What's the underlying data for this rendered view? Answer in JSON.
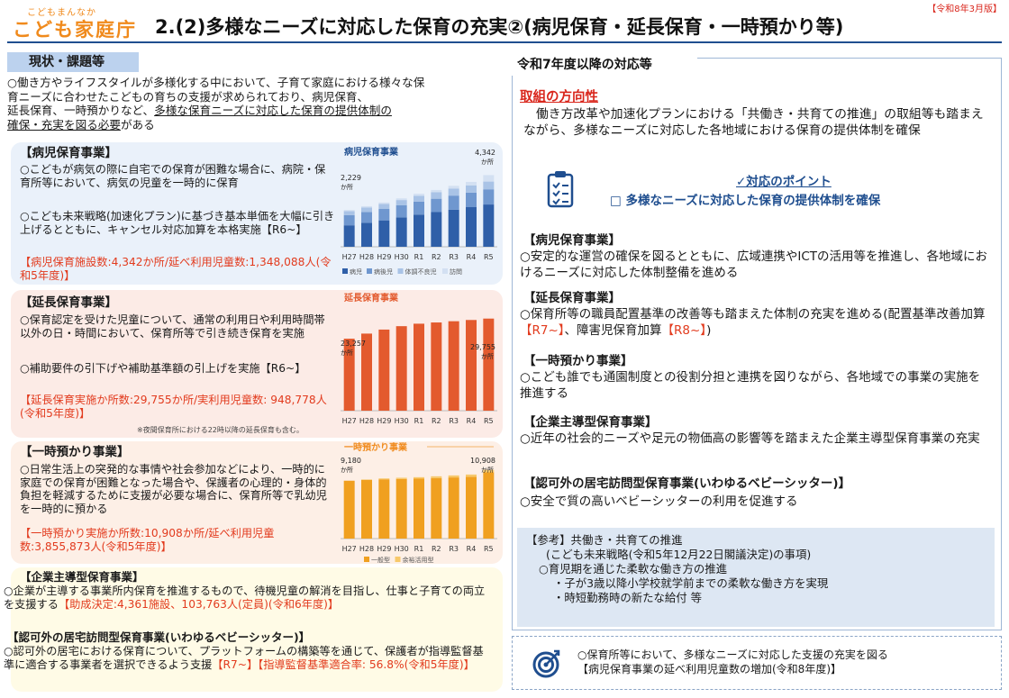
{
  "header": {
    "brand_ruby": "こどもまんなか",
    "brand": "こども家庭庁",
    "title": "2.(2)多様なニーズに対応した保育の充実②(病児保育・延長保育・一時預かり等)",
    "revision": "【令和8年3月版】"
  },
  "left": {
    "heading": "現状・課題等",
    "intro_line1": "○働き方やライフスタイルが多様化する中において、子育て家庭における様々な保",
    "intro_line2": "育ニーズに合わせたこどもの育ちの支援が求められており、病児保育、",
    "intro_line3a": "延長保育、一時預かりなど、",
    "intro_line3b": "多様な保育ニーズに対応した保育の提供体制の",
    "intro_line4a": "確保・充実を図る必要",
    "intro_line4b": "がある",
    "sick": {
      "title": "【病児保育事業】",
      "b1": "○こどもが病気の際に自宅での保育が困難な場合に、病院・保育所等において、病気の児童を一時的に保育",
      "b2": "○こども未来戦略(加速化プラン)に基づき基本単価を大幅に引き上げるとともに、キャンセル対応加算を本格実施【R6~】",
      "stat": "【病児保育施設数:4,342か所/延べ利用児童数:1,348,088人(令和5年度)】"
    },
    "extended": {
      "title": "【延長保育事業】",
      "b1": "○保育認定を受けた児童について、通常の利用日や利用時間帯以外の日・時間において、保育所等で引き続き保育を実施",
      "b2": "○補助要件の引下げや補助基準額の引上げを実施【R6~】",
      "stat": "【延長保育実施か所数:29,755か所/実利用児童数: 948,778人(令和5年度)】",
      "note": "※夜間保育所における22時以降の延長保育も含む。"
    },
    "temp": {
      "title": "【一時預かり事業】",
      "b1": "○日常生活上の突発的な事情や社会参加などにより、一時的に家庭での保育が困難となった場合や、保護者の心理的・身体的負担を軽減するために支援が必要な場合に、保育所等で乳幼児を一時的に預かる",
      "stat": "【一時預かり実施か所数:10,908か所/延べ利用児童数:3,855,873人(令和5年度)】"
    },
    "corp": {
      "title": "【企業主導型保育事業】",
      "body": "○企業が主導する事業所内保育を推進するもので、待機児童の解消を目指し、仕事と子育ての両立を支援する",
      "stat": "【助成決定:4,361施設、103,763人(定員)(令和6年度)】"
    },
    "sitter": {
      "title": "【認可外の居宅訪問型保育事業(いわゆるベビーシッター)】",
      "body": "○認可外の居宅における保育について、プラットフォームの構築等を通じて、保護者が指導監督基準に適合する事業者を選択できるよう支援",
      "tag": "【R7~】",
      "stat": "【指導監督基準適合率: 56.8%(令和5年度)】"
    }
  },
  "chart_data": [
    {
      "type": "bar",
      "title": "病児保育事業",
      "categories": [
        "H27",
        "H28",
        "H29",
        "H30",
        "R1",
        "R2",
        "R3",
        "R4",
        "R5"
      ],
      "series": [
        {
          "name": "病児",
          "values": [
            1300,
            1450,
            1600,
            1780,
            1950,
            2100,
            2250,
            2400,
            2560
          ]
        },
        {
          "name": "病後児",
          "values": [
            620,
            660,
            690,
            730,
            780,
            810,
            850,
            880,
            920
          ]
        },
        {
          "name": "体調不良児",
          "values": [
            240,
            270,
            300,
            320,
            360,
            390,
            420,
            440,
            470
          ]
        },
        {
          "name": "訪問",
          "values": [
            69,
            80,
            92,
            105,
            120,
            140,
            170,
            210,
            392
          ]
        }
      ],
      "first_label": "2,229",
      "last_label": "4,342",
      "unit": "か所",
      "ylim": [
        0,
        4800
      ],
      "legend": "bottom"
    },
    {
      "type": "bar",
      "title": "延長保育事業",
      "categories": [
        "H27",
        "H28",
        "H29",
        "H30",
        "R1",
        "R2",
        "R3",
        "R4",
        "R5"
      ],
      "series": [
        {
          "name": "延長保育",
          "values": [
            23257,
            24900,
            26200,
            27300,
            28100,
            28500,
            28900,
            29300,
            29755
          ]
        }
      ],
      "first_label": "23,257",
      "last_label": "29,755",
      "unit": "か所",
      "ylim": [
        0,
        32000
      ]
    },
    {
      "type": "bar",
      "title": "一時預かり事業",
      "categories": [
        "H27",
        "H28",
        "H29",
        "H30",
        "R1",
        "R2",
        "R3",
        "R4",
        "R5"
      ],
      "series": [
        {
          "name": "一般型",
          "values": [
            9180,
            9300,
            9400,
            9450,
            9500,
            9600,
            9700,
            9800,
            10500
          ]
        },
        {
          "name": "余裕活用型",
          "values": [
            0,
            80,
            140,
            200,
            240,
            280,
            320,
            360,
            408
          ]
        }
      ],
      "first_label": "9,180",
      "last_label": "10,908",
      "unit": "か所",
      "ylim": [
        0,
        12000
      ],
      "legend": "bottom"
    }
  ],
  "right": {
    "heading": "令和7年度以降の対応等",
    "direction_title": "取組の方向性",
    "direction_body": "働き方改革や加速化プランにおける「共働き・共育ての推進」の取組等も踏まえながら、多様なニーズに対応した各地域における保育の提供体制を確保",
    "point_label": "✓対応のポイント",
    "point_body": "□ 多様なニーズに対応した保育の提供体制を確保",
    "items": [
      {
        "title": "【病児保育事業】",
        "body": "○安定的な運営の確保を図るとともに、広域連携やICTの活用等を推進し、各地域におけるニーズに対応した体制整備を進める"
      },
      {
        "title": "【延長保育事業】",
        "body_a": "○保育所等の職員配置基準の改善等も踏まえた体制の充実を進める(配置基準改善加算",
        "tag1": "【R7~】",
        "body_b": "、障害児保育加算",
        "tag2": "【R8~】",
        "body_c": ")"
      },
      {
        "title": "【一時預かり事業】",
        "body": "○こども誰でも通園制度との役割分担と連携を図りながら、各地域での事業の実施を推進する"
      },
      {
        "title": "【企業主導型保育事業】",
        "body": "○近年の社会的ニーズや足元の物価高の影響等を踏まえた企業主導型保育事業の充実"
      },
      {
        "title": "【認可外の居宅訪問型保育事業(いわゆるベビーシッター)】",
        "body": "○安全で質の高いベビーシッターの利用を促進する"
      }
    ],
    "ref": {
      "l1": "【参考】共働き・共育ての推進",
      "l2": "(こども未来戦略(令和5年12月22日閣議決定)の事項)",
      "l3": "○育児期を通じた柔軟な働き方の推進",
      "l4": "・子が3歳以降小学校就学前までの柔軟な働き方を実現",
      "l5": "・時短勤務時の新たな給付 等"
    },
    "goal": {
      "l1": "○保育所等において、多様なニーズに対応した支援の充実を図る",
      "l2": "【病児保育事業の延べ利用児童数の増加(令和8年度)】"
    }
  },
  "colors": {
    "accent_orange": "#f08a1c",
    "title_blue": "#1f4e8f",
    "red": "#e23b1e",
    "sick": [
      "#2f5fa8",
      "#6f97cf",
      "#a9c3e6",
      "#d3e0f2"
    ],
    "extended": "#e35a2e",
    "temp": [
      "#f0a020",
      "#f7c86a"
    ]
  }
}
